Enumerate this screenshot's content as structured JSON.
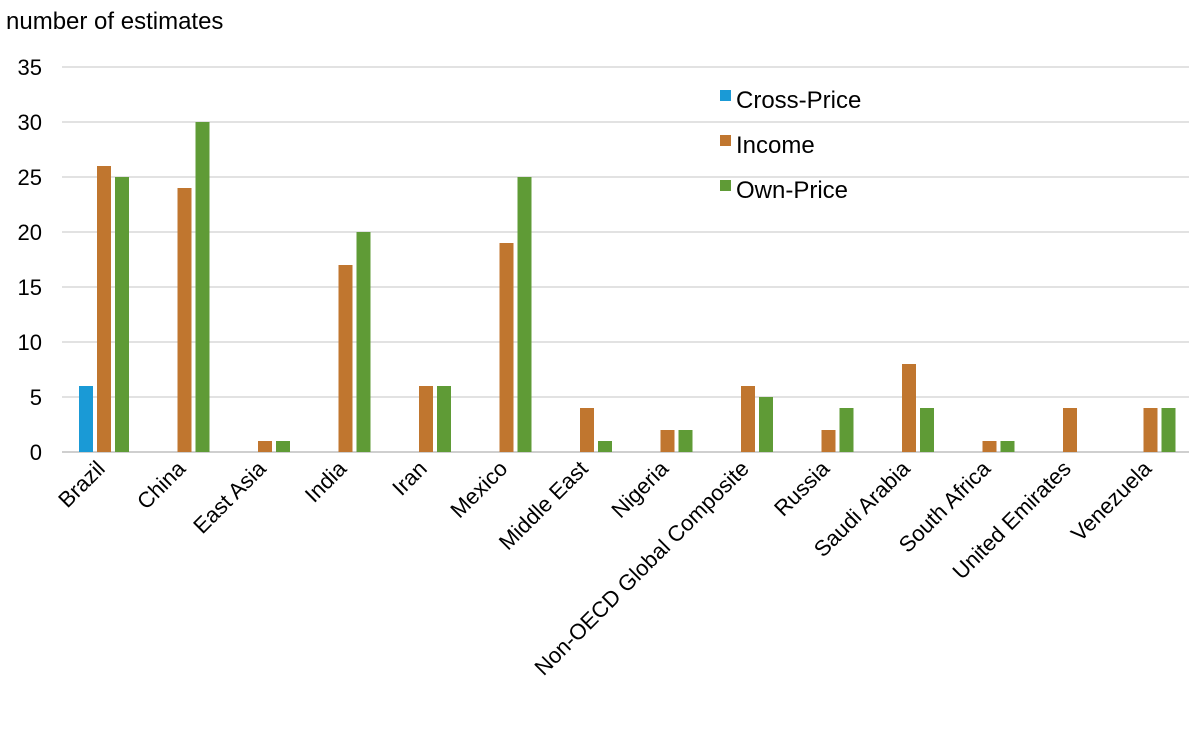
{
  "chart_data": {
    "type": "bar",
    "ylabel": "number of estimates",
    "xlabel": "",
    "ylim": [
      0,
      35
    ],
    "yticks": [
      0,
      5,
      10,
      15,
      20,
      25,
      30,
      35
    ],
    "grid": true,
    "legend_position": "top-right",
    "categories": [
      "Brazil",
      "China",
      "East Asia",
      "India",
      "Iran",
      "Mexico",
      "Middle East",
      "Nigeria",
      "Non-OECD Global Composite",
      "Russia",
      "Saudi Arabia",
      "South Africa",
      "United Emirates",
      "Venezuela"
    ],
    "series": [
      {
        "name": "Cross-Price",
        "color": "#1a9ad6",
        "values": [
          6,
          0,
          0,
          0,
          0,
          0,
          0,
          0,
          0,
          0,
          0,
          0,
          0,
          0
        ]
      },
      {
        "name": "Income",
        "color": "#c0762f",
        "values": [
          26,
          24,
          1,
          17,
          6,
          19,
          4,
          2,
          6,
          2,
          8,
          1,
          4,
          4
        ]
      },
      {
        "name": "Own-Price",
        "color": "#5f9b36",
        "values": [
          25,
          30,
          1,
          20,
          6,
          25,
          1,
          2,
          5,
          4,
          4,
          1,
          0,
          4
        ]
      }
    ]
  }
}
